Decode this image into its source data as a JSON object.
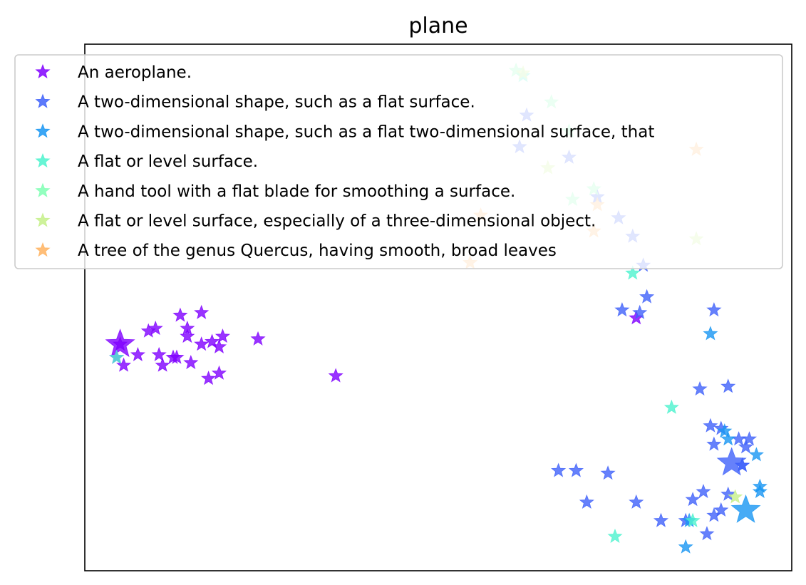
{
  "chart_data": {
    "type": "scatter",
    "title": "plane",
    "xlabel": "",
    "ylabel": "",
    "xlim": [
      0,
      100
    ],
    "ylim": [
      0,
      100
    ],
    "ticks_visible": false,
    "grid": false,
    "legend_position": "top",
    "marker": "star",
    "series": [
      {
        "name": "An aeroplane.",
        "color": "#8000ff",
        "points": [
          [
            5.0,
            43.0
          ],
          [
            4.5,
            40.5
          ],
          [
            5.5,
            39.0
          ],
          [
            7.5,
            41.0
          ],
          [
            9.0,
            45.5
          ],
          [
            10.0,
            46.0
          ],
          [
            10.5,
            41.0
          ],
          [
            11.0,
            39.0
          ],
          [
            12.5,
            40.5
          ],
          [
            13.0,
            40.5
          ],
          [
            13.5,
            48.5
          ],
          [
            14.5,
            44.5
          ],
          [
            14.5,
            46.0
          ],
          [
            15.0,
            39.5
          ],
          [
            16.5,
            43.0
          ],
          [
            16.5,
            49.0
          ],
          [
            17.5,
            36.5
          ],
          [
            18.0,
            43.5
          ],
          [
            19.0,
            42.5
          ],
          [
            19.0,
            37.5
          ],
          [
            19.5,
            44.5
          ],
          [
            24.5,
            44.0
          ],
          [
            35.5,
            37.0
          ],
          [
            78.0,
            48.0
          ]
        ],
        "big": [
          [
            5.0,
            43.0
          ]
        ]
      },
      {
        "name": "A two-dimensional shape, such as a flat surface.",
        "color": "#4062fa",
        "points": [
          [
            62.5,
            86.5
          ],
          [
            61.5,
            80.5
          ],
          [
            68.5,
            78.5
          ],
          [
            72.5,
            71.0
          ],
          [
            75.5,
            67.0
          ],
          [
            77.5,
            63.5
          ],
          [
            79.0,
            58.0
          ],
          [
            79.5,
            52.0
          ],
          [
            76.0,
            49.5
          ],
          [
            78.5,
            49.0
          ],
          [
            89.0,
            49.5
          ],
          [
            87.0,
            34.5
          ],
          [
            88.5,
            27.5
          ],
          [
            91.0,
            35.0
          ],
          [
            90.0,
            27.0
          ],
          [
            89.0,
            24.0
          ],
          [
            92.5,
            25.0
          ],
          [
            94.0,
            25.0
          ],
          [
            93.5,
            23.5
          ],
          [
            93.0,
            20.0
          ],
          [
            93.0,
            20.0
          ],
          [
            87.5,
            15.0
          ],
          [
            91.0,
            14.5
          ],
          [
            86.0,
            13.5
          ],
          [
            89.0,
            10.5
          ],
          [
            69.5,
            19.0
          ],
          [
            74.0,
            18.5
          ],
          [
            71.0,
            13.0
          ],
          [
            78.0,
            13.0
          ],
          [
            81.5,
            9.5
          ],
          [
            85.0,
            9.5
          ],
          [
            88.0,
            7.0
          ],
          [
            90.0,
            11.5
          ],
          [
            67.0,
            19.0
          ]
        ],
        "big": [
          [
            91.5,
            20.5
          ]
        ]
      },
      {
        "name": "A two-dimensional shape, such as a flat two-dimensional surface, that",
        "color": "#1996f3",
        "points": [
          [
            88.5,
            45.0
          ],
          [
            90.5,
            26.5
          ],
          [
            91.0,
            25.0
          ],
          [
            95.0,
            22.0
          ],
          [
            95.5,
            16.0
          ],
          [
            95.5,
            15.0
          ],
          [
            85.5,
            9.5
          ],
          [
            85.0,
            4.5
          ]
        ],
        "big": [
          [
            93.5,
            11.5
          ]
        ]
      },
      {
        "name": "A flat or level surface.",
        "color": "#4df3ce",
        "points": [
          [
            4.5,
            40.5
          ],
          [
            62.0,
            94.0
          ],
          [
            77.5,
            56.5
          ],
          [
            83.0,
            31.0
          ],
          [
            86.0,
            9.5
          ],
          [
            75.0,
            6.5
          ]
        ],
        "big": []
      },
      {
        "name": "A hand tool with a flat blade for smoothing a surface.",
        "color": "#80ffb4",
        "points": [
          [
            61.0,
            95.0
          ],
          [
            66.0,
            89.0
          ],
          [
            68.5,
            83.5
          ],
          [
            72.0,
            72.5
          ],
          [
            69.0,
            70.5
          ]
        ],
        "big": []
      },
      {
        "name": "A flat or level surface, especially of a three-dimensional object.",
        "color": "#c5f08a",
        "points": [
          [
            65.5,
            76.5
          ],
          [
            62.0,
            94.5
          ],
          [
            86.5,
            63.0
          ],
          [
            92.0,
            14.0
          ]
        ],
        "big": []
      },
      {
        "name": "A tree of the genus Quercus, having smooth, broad leaves",
        "color": "#ffb360",
        "points": [
          [
            54.5,
            58.5
          ],
          [
            86.5,
            80.0
          ],
          [
            72.5,
            69.5
          ],
          [
            72.0,
            64.5
          ],
          [
            56.0,
            67.5
          ]
        ],
        "big": []
      }
    ]
  }
}
